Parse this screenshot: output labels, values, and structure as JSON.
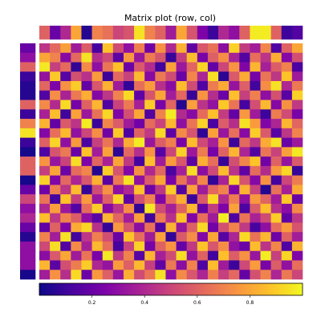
{
  "chart_data": {
    "type": "heatmap",
    "title": "Matrix plot (row, col)",
    "colormap": "plasma",
    "rows": 25,
    "cols": 25,
    "colorbar": {
      "ticks": [
        0.2,
        0.4,
        0.6,
        0.8
      ],
      "tick_labels": [
        "0.2",
        "0.4",
        "0.6",
        "0.8"
      ],
      "range": [
        0,
        1
      ]
    },
    "col_dendro_values": [
      0.6,
      0.2,
      0.4,
      0.8,
      0.05,
      0.7,
      0.65,
      0.5,
      0.55,
      0.95,
      0.7,
      0.6,
      0.35,
      0.8,
      0.55,
      0.25,
      0.1,
      0.4,
      0.3,
      0.6,
      0.97,
      0.97,
      0.6,
      0.1,
      0.15
    ],
    "row_dendro_values": [
      0.2,
      0.3,
      0.6,
      0.1,
      0.05,
      0.05,
      0.6,
      0.1,
      0.7,
      0.95,
      0.1,
      0.02,
      0.6,
      0.6,
      0.02,
      0.2,
      0.5,
      0.3,
      0.4,
      0.2,
      0.05,
      0.3,
      0.3,
      0.3,
      0.02
    ],
    "matrix": [
      [
        0.45,
        0.62,
        0.78,
        0.35,
        0.58,
        0.12,
        0.88,
        0.52,
        0.31,
        0.69,
        0.22,
        0.74,
        0.4,
        0.83,
        0.18,
        0.56,
        0.65,
        0.29,
        0.91,
        0.47,
        0.36,
        0.71,
        0.14,
        0.6,
        0.8
      ],
      [
        0.8,
        0.7,
        0.28,
        0.62,
        0.95,
        0.42,
        0.51,
        0.17,
        0.76,
        0.33,
        0.68,
        0.55,
        0.09,
        0.47,
        0.86,
        0.24,
        0.59,
        0.73,
        0.38,
        0.15,
        0.64,
        0.44,
        0.82,
        0.27,
        0.53
      ],
      [
        0.96,
        0.48,
        0.63,
        0.08,
        0.72,
        0.3,
        0.66,
        0.87,
        0.21,
        0.57,
        0.41,
        0.11,
        0.79,
        0.34,
        0.61,
        0.92,
        0.19,
        0.5,
        0.75,
        0.26,
        0.84,
        0.37,
        0.58,
        0.7,
        0.13
      ],
      [
        0.32,
        0.89,
        0.16,
        0.54,
        0.43,
        0.77,
        0.1,
        0.62,
        0.49,
        0.85,
        0.28,
        0.67,
        0.52,
        0.2,
        0.71,
        0.39,
        0.94,
        0.06,
        0.57,
        0.81,
        0.23,
        0.66,
        0.45,
        0.88,
        0.35
      ],
      [
        0.61,
        0.25,
        0.74,
        0.9,
        0.19,
        0.56,
        0.83,
        0.35,
        0.08,
        0.64,
        0.77,
        0.43,
        0.29,
        0.86,
        0.52,
        0.14,
        0.68,
        0.81,
        0.32,
        0.59,
        0.11,
        0.73,
        0.95,
        0.4,
        0.67
      ],
      [
        0.15,
        0.73,
        0.38,
        0.67,
        0.82,
        0.27,
        0.45,
        0.7,
        0.93,
        0.18,
        0.55,
        0.8,
        0.36,
        0.62,
        0.09,
        0.75,
        0.42,
        0.21,
        0.87,
        0.48,
        0.69,
        0.3,
        0.54,
        0.16,
        0.91
      ],
      [
        0.72,
        0.41,
        0.93,
        0.23,
        0.6,
        0.84,
        0.14,
        0.49,
        0.67,
        0.37,
        0.9,
        0.24,
        0.61,
        0.05,
        0.78,
        0.44,
        0.31,
        0.89,
        0.66,
        0.12,
        0.53,
        0.85,
        0.27,
        0.74,
        0.46
      ],
      [
        0.38,
        0.86,
        0.11,
        0.79,
        0.34,
        0.65,
        0.92,
        0.26,
        0.53,
        0.8,
        0.15,
        0.7,
        0.97,
        0.41,
        0.28,
        0.63,
        0.87,
        0.47,
        0.19,
        0.76,
        0.35,
        0.1,
        0.68,
        0.52,
        0.24
      ],
      [
        0.83,
        0.19,
        0.57,
        0.44,
        0.97,
        0.1,
        0.71,
        0.58,
        0.35,
        0.22,
        0.63,
        0.49,
        0.85,
        0.3,
        0.66,
        0.91,
        0.13,
        0.58,
        0.42,
        0.95,
        0.77,
        0.26,
        0.39,
        0.84,
        0.61
      ],
      [
        0.27,
        0.64,
        0.85,
        0.31,
        0.5,
        0.73,
        0.22,
        0.89,
        0.14,
        0.6,
        0.46,
        0.93,
        0.18,
        0.72,
        0.55,
        0.07,
        0.79,
        0.33,
        0.64,
        0.28,
        0.9,
        0.57,
        0.16,
        0.45,
        0.7
      ],
      [
        0.59,
        0.92,
        0.3,
        0.76,
        0.13,
        0.48,
        0.66,
        0.4,
        0.81,
        0.97,
        0.33,
        0.58,
        0.69,
        0.24,
        0.86,
        0.51,
        0.37,
        0.75,
        0.1,
        0.62,
        0.45,
        0.81,
        0.95,
        0.2,
        0.34
      ],
      [
        0.14,
        0.55,
        0.67,
        0.2,
        0.88,
        0.36,
        0.79,
        0.07,
        0.62,
        0.42,
        0.75,
        0.16,
        0.5,
        0.91,
        0.34,
        0.68,
        0.23,
        0.6,
        0.84,
        0.39,
        0.15,
        0.66,
        0.49,
        0.78,
        0.96
      ],
      [
        0.75,
        0.33,
        0.49,
        0.94,
        0.25,
        0.61,
        0.38,
        0.8,
        0.46,
        0.12,
        0.87,
        0.35,
        0.77,
        0.56,
        0.17,
        0.82,
        0.64,
        0.09,
        0.53,
        0.71,
        0.88,
        0.22,
        0.6,
        0.32,
        0.57
      ],
      [
        0.48,
        0.8,
        0.21,
        0.63,
        0.71,
        0.05,
        0.9,
        0.55,
        0.27,
        0.74,
        0.4,
        0.62,
        0.13,
        0.37,
        0.94,
        0.29,
        0.51,
        0.86,
        0.44,
        0.18,
        0.63,
        0.41,
        0.76,
        0.92,
        0.09
      ],
      [
        0.91,
        0.26,
        0.62,
        0.39,
        0.56,
        0.83,
        0.17,
        0.67,
        0.95,
        0.31,
        0.58,
        0.8,
        0.24,
        0.65,
        0.42,
        0.71,
        0.08,
        0.38,
        0.92,
        0.55,
        0.27,
        0.74,
        0.12,
        0.5,
        0.68
      ],
      [
        0.22,
        0.69,
        0.44,
        0.86,
        0.09,
        0.52,
        0.74,
        0.3,
        0.4,
        0.87,
        0.21,
        0.45,
        0.9,
        0.15,
        0.79,
        0.35,
        0.62,
        0.7,
        0.26,
        0.83,
        0.49,
        0.05,
        0.65,
        0.37,
        0.81
      ],
      [
        0.66,
        0.12,
        0.88,
        0.47,
        0.77,
        0.33,
        0.59,
        0.92,
        0.18,
        0.53,
        0.7,
        0.26,
        0.64,
        0.82,
        0.1,
        0.57,
        0.93,
        0.41,
        0.68,
        0.3,
        0.76,
        0.61,
        0.35,
        0.89,
        0.2
      ],
      [
        0.4,
        0.78,
        0.34,
        0.15,
        0.63,
        0.9,
        0.28,
        0.44,
        0.73,
        0.08,
        0.96,
        0.52,
        0.37,
        0.6,
        0.85,
        0.19,
        0.47,
        0.25,
        0.79,
        0.13,
        0.58,
        0.87,
        0.43,
        0.29,
        0.72
      ],
      [
        0.87,
        0.45,
        0.7,
        0.58,
        0.3,
        0.17,
        0.84,
        0.61,
        0.36,
        0.78,
        0.11,
        0.68,
        0.43,
        0.88,
        0.26,
        0.64,
        0.35,
        0.97,
        0.14,
        0.66,
        0.38,
        0.52,
        0.9,
        0.18,
        0.45
      ],
      [
        0.18,
        0.6,
        0.26,
        0.81,
        0.92,
        0.43,
        0.08,
        0.76,
        0.55,
        0.29,
        0.65,
        0.14,
        0.83,
        0.32,
        0.59,
        0.93,
        0.22,
        0.54,
        0.7,
        0.46,
        0.12,
        0.3,
        0.63,
        0.77,
        0.55
      ],
      [
        0.7,
        0.36,
        0.95,
        0.11,
        0.45,
        0.69,
        0.53,
        0.2,
        0.88,
        0.64,
        0.35,
        0.79,
        0.08,
        0.57,
        0.73,
        0.27,
        0.8,
        0.16,
        0.39,
        0.93,
        0.65,
        0.84,
        0.21,
        0.6,
        0.36
      ],
      [
        0.51,
        0.94,
        0.15,
        0.72,
        0.37,
        0.85,
        0.64,
        0.12,
        0.49,
        0.91,
        0.23,
        0.6,
        0.75,
        0.19,
        0.46,
        0.88,
        0.56,
        0.73,
        0.31,
        0.21,
        0.86,
        0.44,
        0.71,
        0.14,
        0.83
      ],
      [
        0.29,
        0.57,
        0.8,
        0.35,
        0.66,
        0.24,
        0.96,
        0.46,
        0.7,
        0.16,
        0.84,
        0.37,
        0.52,
        0.94,
        0.31,
        0.6,
        0.11,
        0.87,
        0.58,
        0.74,
        0.33,
        0.97,
        0.48,
        0.92,
        0.26
      ],
      [
        0.84,
        0.17,
        0.53,
        0.68,
        0.9,
        0.4,
        0.32,
        0.77,
        0.59,
        0.85,
        0.48,
        0.18,
        0.67,
        0.29,
        0.7,
        0.14,
        0.86,
        0.35,
        0.1,
        0.51,
        0.77,
        0.24,
        0.58,
        0.31,
        0.64
      ],
      [
        0.36,
        0.74,
        0.42,
        0.93,
        0.21,
        0.76,
        0.59,
        0.33,
        0.82,
        0.52,
        0.66,
        0.95,
        0.3,
        0.72,
        0.56,
        0.39,
        0.69,
        0.48,
        0.62,
        0.19,
        0.54,
        0.7,
        0.39,
        0.67,
        0.5
      ]
    ]
  }
}
